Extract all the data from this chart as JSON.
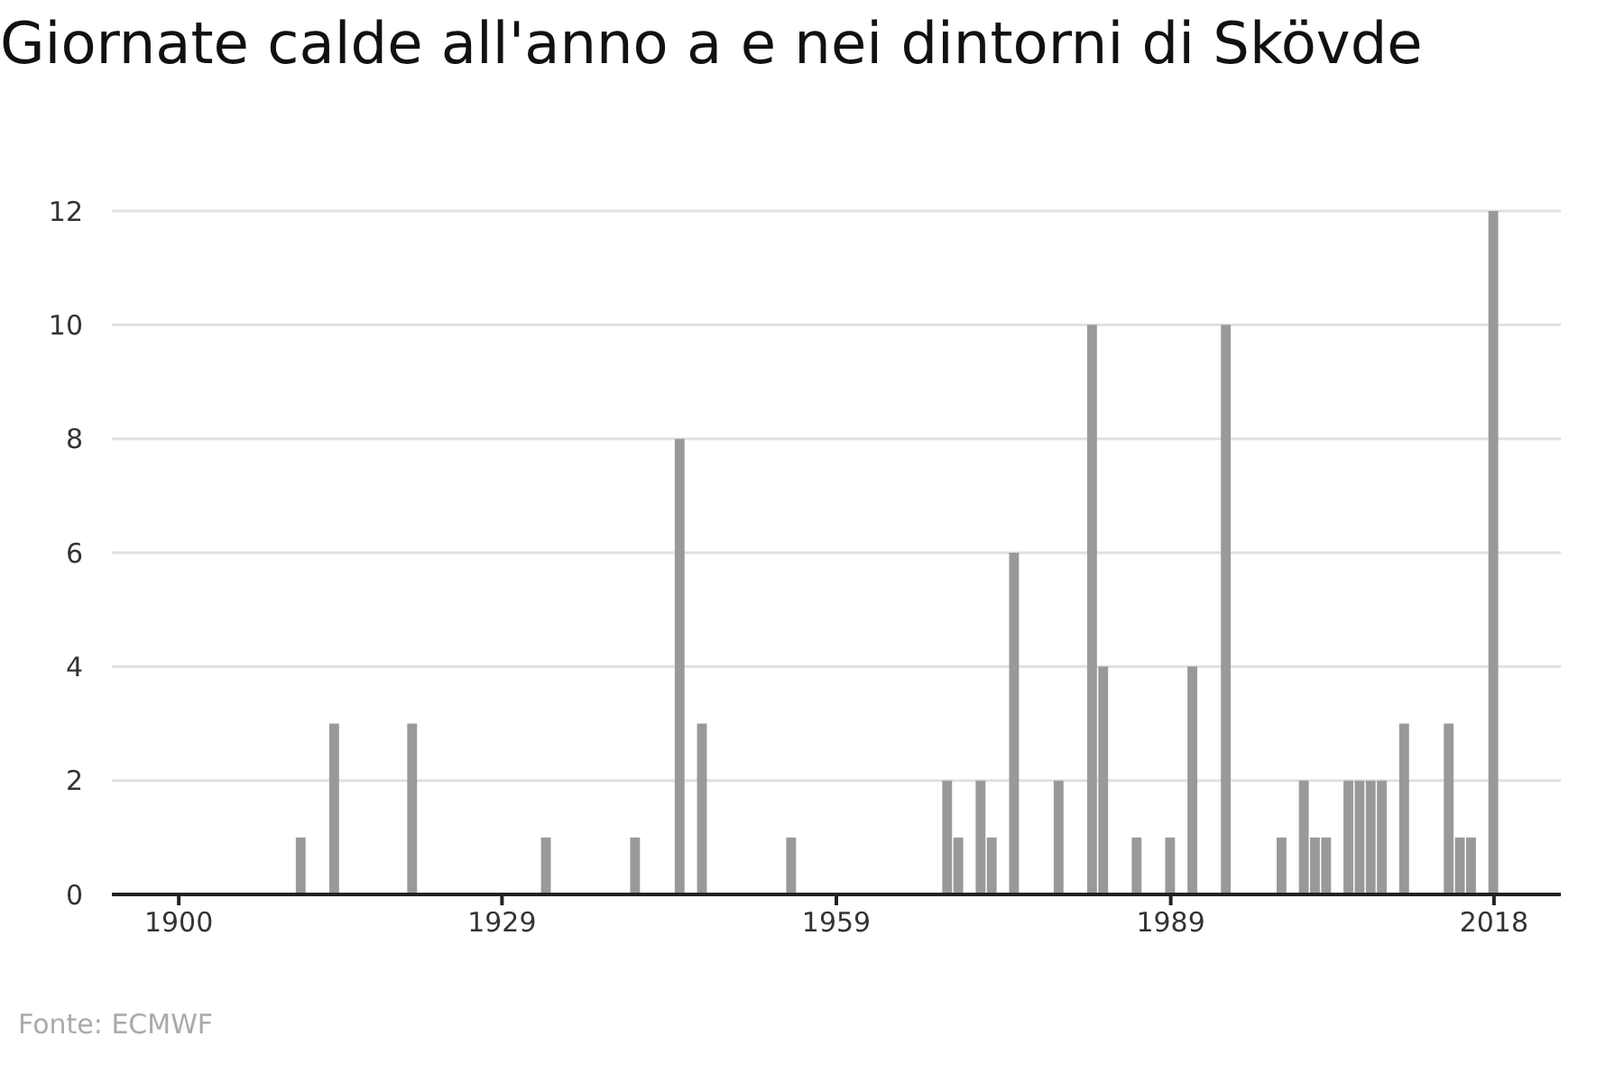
{
  "chart_data": {
    "type": "bar",
    "title": "Giornate calde all'anno a e nei dintorni di Skövde",
    "x": [
      1911,
      1914,
      1921,
      1933,
      1941,
      1945,
      1947,
      1955,
      1969,
      1970,
      1972,
      1973,
      1975,
      1979,
      1982,
      1983,
      1986,
      1989,
      1991,
      1994,
      1999,
      2001,
      2002,
      2003,
      2005,
      2006,
      2007,
      2008,
      2010,
      2014,
      2015,
      2016,
      2018
    ],
    "values": [
      1,
      3,
      3,
      1,
      1,
      8,
      3,
      1,
      2,
      1,
      2,
      1,
      6,
      2,
      10,
      4,
      1,
      1,
      4,
      10,
      1,
      2,
      1,
      1,
      2,
      2,
      2,
      2,
      3,
      3,
      1,
      1,
      12
    ],
    "color": "#999999",
    "xlim": [
      1894,
      2024
    ],
    "xticks": [
      1900,
      1929,
      1959,
      1989,
      2018
    ],
    "ylim": [
      0,
      12
    ],
    "yticks": [
      0,
      2,
      4,
      6,
      8,
      10,
      12
    ],
    "grid": "y",
    "annotations": [
      "Fonte: ECMWF"
    ]
  }
}
